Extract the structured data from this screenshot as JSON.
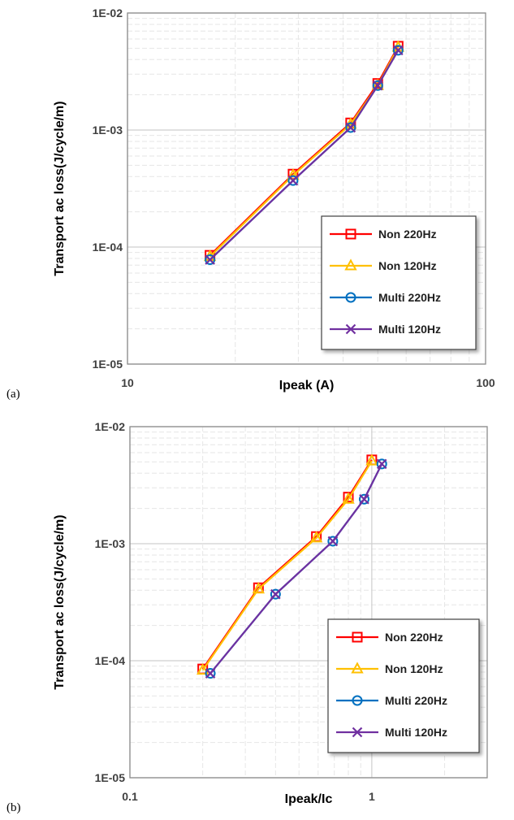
{
  "chart_data": [
    {
      "panel_label": "(a)",
      "type": "line",
      "xscale": "log",
      "yscale": "log",
      "xlabel": "Ipeak (A)",
      "ylabel": "Transport ac loss(J/cycle/m)",
      "xlim": [
        10,
        100
      ],
      "ylim": [
        1e-05,
        0.01
      ],
      "xticks": [
        "10",
        "100"
      ],
      "yticks": [
        "1E-05",
        "1E-04",
        "1E-03",
        "1E-02"
      ],
      "grid": true,
      "legend_position": "bottom-right",
      "series": [
        {
          "name": "Non 220Hz",
          "color": "#ff0000",
          "marker": "square",
          "x": [
            17,
            29,
            42,
            50,
            57
          ],
          "y": [
            8.5e-05,
            0.00042,
            0.00115,
            0.0025,
            0.0052
          ]
        },
        {
          "name": "Non 120Hz",
          "color": "#ffc000",
          "marker": "triangle",
          "x": [
            17,
            29,
            42,
            50,
            57
          ],
          "y": [
            8.3e-05,
            0.00041,
            0.00112,
            0.0024,
            0.0051
          ]
        },
        {
          "name": "Multi 220Hz",
          "color": "#0070c0",
          "marker": "circle",
          "x": [
            17,
            29,
            42,
            50,
            57
          ],
          "y": [
            7.8e-05,
            0.00037,
            0.00105,
            0.0024,
            0.0048
          ]
        },
        {
          "name": "Multi 120Hz",
          "color": "#7030a0",
          "marker": "x",
          "x": [
            17,
            29,
            42,
            50,
            57
          ],
          "y": [
            7.8e-05,
            0.00037,
            0.00105,
            0.0024,
            0.0048
          ]
        }
      ]
    },
    {
      "panel_label": "(b)",
      "type": "line",
      "xscale": "log",
      "yscale": "log",
      "xlabel": "Ipeak/Ic",
      "ylabel": "Transport ac loss(J/cycle/m)",
      "xlim": [
        0.1,
        3
      ],
      "ylim": [
        1e-05,
        0.01
      ],
      "xticks": [
        "0.1",
        "1"
      ],
      "yticks": [
        "1E-05",
        "1E-04",
        "1E-03",
        "1E-02"
      ],
      "grid": true,
      "legend_position": "bottom-right",
      "series": [
        {
          "name": "Non 220Hz",
          "color": "#ff0000",
          "marker": "square",
          "x": [
            0.2,
            0.34,
            0.59,
            0.8,
            1.0
          ],
          "y": [
            8.5e-05,
            0.00042,
            0.00115,
            0.0025,
            0.0052
          ]
        },
        {
          "name": "Non 120Hz",
          "color": "#ffc000",
          "marker": "triangle",
          "x": [
            0.2,
            0.34,
            0.59,
            0.8,
            1.0
          ],
          "y": [
            8.3e-05,
            0.00041,
            0.00112,
            0.0024,
            0.0051
          ]
        },
        {
          "name": "Multi 220Hz",
          "color": "#0070c0",
          "marker": "circle",
          "x": [
            0.215,
            0.4,
            0.69,
            0.93,
            1.1
          ],
          "y": [
            7.8e-05,
            0.00037,
            0.00105,
            0.0024,
            0.0048
          ]
        },
        {
          "name": "Multi 120Hz",
          "color": "#7030a0",
          "marker": "x",
          "x": [
            0.215,
            0.4,
            0.69,
            0.93,
            1.1
          ],
          "y": [
            7.8e-05,
            0.00037,
            0.00105,
            0.0024,
            0.0048
          ]
        }
      ]
    }
  ]
}
